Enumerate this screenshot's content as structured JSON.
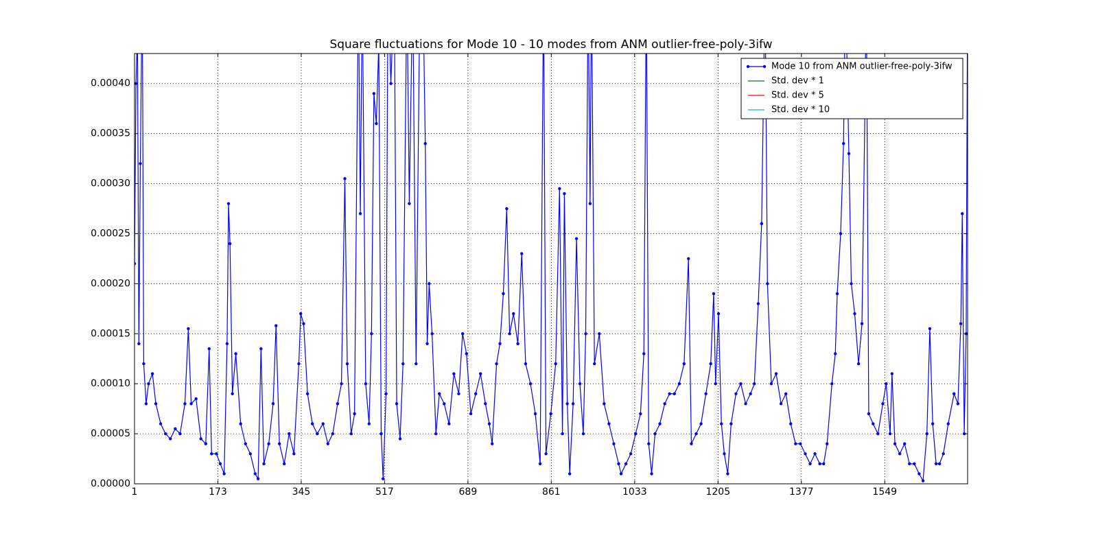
{
  "chart_data": {
    "type": "line",
    "title": "Square fluctuations for Mode 10 - 10 modes from ANM outlier-free-poly-3ifw",
    "x": [
      1,
      4,
      7,
      10,
      13,
      17,
      20,
      25,
      30,
      38,
      45,
      55,
      65,
      75,
      85,
      95,
      105,
      112,
      118,
      128,
      138,
      148,
      155,
      160,
      170,
      178,
      186,
      192,
      195,
      198,
      203,
      210,
      220,
      230,
      240,
      250,
      256,
      262,
      268,
      278,
      287,
      293,
      300,
      310,
      320,
      330,
      340,
      344,
      350,
      358,
      368,
      378,
      390,
      400,
      410,
      420,
      428,
      435,
      440,
      448,
      455,
      463,
      467,
      471,
      478,
      485,
      490,
      495,
      500,
      505,
      510,
      514,
      520,
      524,
      530,
      537,
      542,
      549,
      555,
      563,
      568,
      575,
      582,
      590,
      596,
      601,
      605,
      609,
      615,
      623,
      630,
      640,
      650,
      660,
      670,
      678,
      686,
      695,
      705,
      715,
      725,
      733,
      739,
      748,
      755,
      762,
      769,
      775,
      783,
      792,
      800,
      808,
      818,
      828,
      838,
      845,
      850,
      860,
      870,
      878,
      884,
      888,
      894,
      899,
      906,
      913,
      920,
      927,
      932,
      937,
      941,
      944,
      950,
      960,
      970,
      980,
      990,
      1000,
      1005,
      1015,
      1025,
      1035,
      1045,
      1052,
      1057,
      1062,
      1068,
      1075,
      1085,
      1095,
      1105,
      1115,
      1125,
      1135,
      1144,
      1150,
      1160,
      1170,
      1180,
      1190,
      1196,
      1200,
      1206,
      1212,
      1218,
      1225,
      1232,
      1242,
      1252,
      1262,
      1272,
      1280,
      1288,
      1295,
      1302,
      1307,
      1315,
      1325,
      1335,
      1345,
      1355,
      1365,
      1375,
      1385,
      1395,
      1405,
      1415,
      1423,
      1430,
      1440,
      1447,
      1451,
      1458,
      1464,
      1468,
      1475,
      1480,
      1487,
      1495,
      1502,
      1508,
      1511,
      1516,
      1525,
      1535,
      1545,
      1552,
      1560,
      1564,
      1570,
      1580,
      1590,
      1600,
      1610,
      1620,
      1628,
      1636,
      1642,
      1648,
      1655,
      1662,
      1670,
      1680,
      1692,
      1700,
      1706,
      1709,
      1713,
      1717,
      1720
    ],
    "series": [
      {
        "name": "Mode 10 from ANM outlier-free-poly-3ifw",
        "color": "#0000ff",
        "marker": true,
        "values": [
          0.00022,
          0.0004,
          0.00045,
          0.00014,
          0.00032,
          0.0005,
          0.00012,
          8e-05,
          0.0001,
          0.00011,
          8e-05,
          6e-05,
          5e-05,
          4.5e-05,
          5.5e-05,
          5e-05,
          8e-05,
          0.000155,
          8e-05,
          8.5e-05,
          4.5e-05,
          4e-05,
          0.000135,
          3e-05,
          3e-05,
          2e-05,
          1e-05,
          0.00014,
          0.00028,
          0.00024,
          9e-05,
          0.00013,
          6e-05,
          4e-05,
          3e-05,
          1e-05,
          5e-06,
          0.000135,
          2e-05,
          4e-05,
          8e-05,
          0.000158,
          4e-05,
          2e-05,
          5e-05,
          3e-05,
          0.00012,
          0.00017,
          0.00016,
          9e-05,
          6e-05,
          5e-05,
          6e-05,
          4e-05,
          5e-05,
          8e-05,
          0.0001,
          0.000305,
          0.00012,
          5e-05,
          7e-05,
          0.0005,
          0.00027,
          0.0005,
          0.0001,
          6e-05,
          0.00015,
          0.00039,
          0.00036,
          0.00044,
          5e-05,
          5e-06,
          9e-05,
          0.0005,
          0.0004,
          0.0005,
          8e-05,
          4.5e-05,
          0.00012,
          0.0005,
          0.00028,
          0.0005,
          0.00012,
          0.0005,
          0.0005,
          0.00034,
          0.00014,
          0.0002,
          0.00015,
          5e-05,
          9e-05,
          8e-05,
          6e-05,
          0.00011,
          9e-05,
          0.00015,
          0.00013,
          7e-05,
          9e-05,
          0.00011,
          8e-05,
          6e-05,
          4e-05,
          0.00012,
          0.00014,
          0.00019,
          0.000275,
          0.00015,
          0.00017,
          0.00014,
          0.00023,
          0.00012,
          0.0001,
          7e-05,
          2e-05,
          0.0005,
          3e-05,
          7e-05,
          0.00012,
          0.000295,
          5e-05,
          0.00029,
          8e-05,
          1e-05,
          8e-05,
          0.000245,
          0.0001,
          5e-05,
          0.00015,
          0.0005,
          0.00028,
          0.0005,
          0.00012,
          0.00015,
          8e-05,
          6e-05,
          4e-05,
          2e-05,
          1e-05,
          2e-05,
          3e-05,
          5e-05,
          7e-05,
          0.00013,
          0.0005,
          4e-05,
          1e-05,
          5e-05,
          6e-05,
          8e-05,
          9e-05,
          9e-05,
          0.0001,
          0.00012,
          0.000225,
          4e-05,
          5e-05,
          6e-05,
          9e-05,
          0.00012,
          0.00019,
          0.0001,
          0.00017,
          6e-05,
          3e-05,
          1e-05,
          6e-05,
          9e-05,
          0.0001,
          8e-05,
          9e-05,
          0.0001,
          0.00018,
          0.00026,
          0.0005,
          0.0002,
          0.0001,
          0.00011,
          8e-05,
          9e-05,
          6e-05,
          4e-05,
          4e-05,
          3e-05,
          2e-05,
          3e-05,
          2e-05,
          2e-05,
          4e-05,
          0.0001,
          0.00013,
          0.00019,
          0.00025,
          0.00034,
          0.0005,
          0.00033,
          0.0002,
          0.00017,
          0.00012,
          0.00016,
          0.00037,
          0.0005,
          7e-05,
          6e-05,
          5e-05,
          8e-05,
          0.0001,
          5e-05,
          0.00011,
          4e-05,
          3e-05,
          4e-05,
          2e-05,
          2e-05,
          1e-05,
          3e-06,
          5e-05,
          0.000155,
          6e-05,
          2e-05,
          2e-05,
          3e-05,
          6e-05,
          9e-05,
          8e-05,
          0.00016,
          0.00027,
          5e-05,
          0.00015,
          0.0005
        ]
      },
      {
        "name": "Std. dev * 1",
        "color": "#008000"
      },
      {
        "name": "Std. dev * 5",
        "color": "#ff0000"
      },
      {
        "name": "Std. dev * 10",
        "color": "#00bfbf"
      }
    ],
    "xlim": [
      1,
      1720
    ],
    "xticks": [
      1,
      173,
      345,
      517,
      689,
      861,
      1033,
      1205,
      1377,
      1549
    ],
    "ylim": [
      0,
      0.00043
    ],
    "yticks": [
      {
        "value": 0,
        "label": "0.00000"
      },
      5e-05,
      {
        "value": 0.0001,
        "label": "0.00010"
      },
      0.00015,
      {
        "value": 0.0002,
        "label": "0.00020"
      },
      0.00025,
      {
        "value": 0.0003,
        "label": "0.00030"
      },
      0.00035,
      {
        "value": 0.0004,
        "label": "0.00040"
      }
    ],
    "grid": true,
    "legend": "upper right"
  }
}
